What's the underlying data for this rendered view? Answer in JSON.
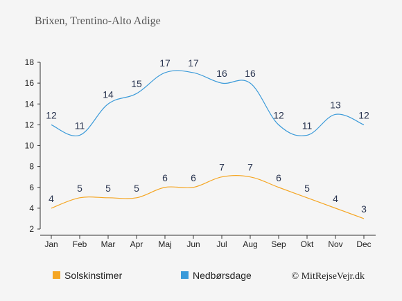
{
  "page": {
    "title": "Brixen, Trentino-Alto Adige",
    "credit": "© MitRejseVejr.dk"
  },
  "chart_data": {
    "type": "line",
    "categories": [
      "Jan",
      "Feb",
      "Mar",
      "Apr",
      "Maj",
      "Jun",
      "Jul",
      "Aug",
      "Sep",
      "Okt",
      "Nov",
      "Dec"
    ],
    "series": [
      {
        "name": "Solskinstimer",
        "color": "#f5a623",
        "values": [
          4,
          5,
          5,
          5,
          6,
          6,
          7,
          7,
          6,
          5,
          4,
          3
        ]
      },
      {
        "name": "Nedbørsdage",
        "color": "#3a9ad9",
        "values": [
          12,
          11,
          14,
          15,
          17,
          17,
          16,
          16,
          12,
          11,
          13,
          12
        ]
      }
    ],
    "ylim": [
      2,
      18
    ],
    "yticks": [
      2,
      4,
      6,
      8,
      10,
      12,
      14,
      16,
      18
    ],
    "grid": false,
    "legend": "bottom-left"
  }
}
